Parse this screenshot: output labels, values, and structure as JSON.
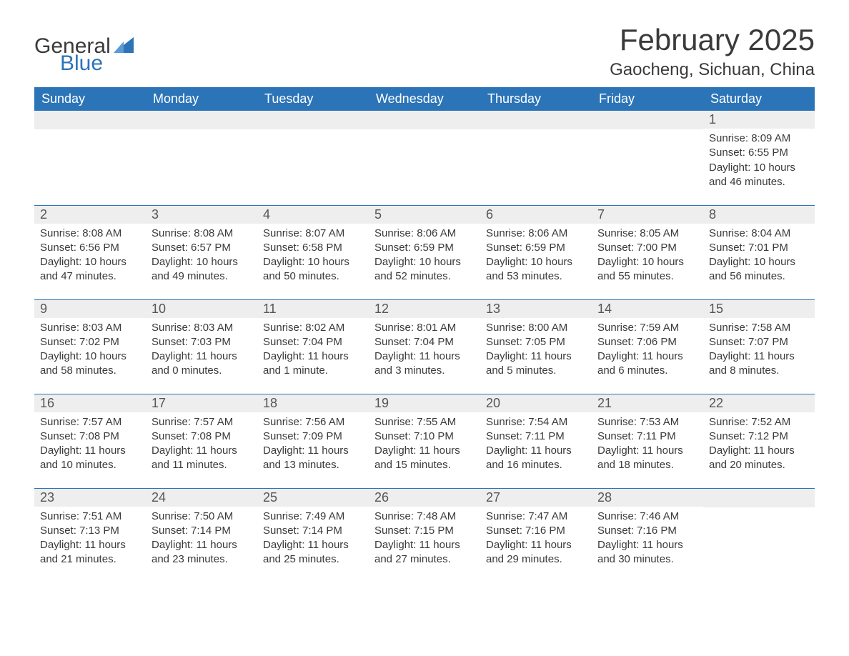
{
  "logo": {
    "text1": "General",
    "text2": "Blue"
  },
  "colors": {
    "brand": "#2b74b8",
    "headerBg": "#2b74b8",
    "headerText": "#ffffff",
    "daynumBg": "#eeeeee",
    "daynumText": "#555555",
    "bodyText": "#3a3a3a",
    "rowBorder": "#2b74b8",
    "pageBg": "#ffffff"
  },
  "title": "February 2025",
  "location": "Gaocheng, Sichuan, China",
  "weekdays": [
    "Sunday",
    "Monday",
    "Tuesday",
    "Wednesday",
    "Thursday",
    "Friday",
    "Saturday"
  ],
  "weeks": [
    [
      {
        "blank": true
      },
      {
        "blank": true
      },
      {
        "blank": true
      },
      {
        "blank": true
      },
      {
        "blank": true
      },
      {
        "blank": true
      },
      {
        "day": "1",
        "sunrise": "Sunrise: 8:09 AM",
        "sunset": "Sunset: 6:55 PM",
        "daylight": "Daylight: 10 hours and 46 minutes."
      }
    ],
    [
      {
        "day": "2",
        "sunrise": "Sunrise: 8:08 AM",
        "sunset": "Sunset: 6:56 PM",
        "daylight": "Daylight: 10 hours and 47 minutes."
      },
      {
        "day": "3",
        "sunrise": "Sunrise: 8:08 AM",
        "sunset": "Sunset: 6:57 PM",
        "daylight": "Daylight: 10 hours and 49 minutes."
      },
      {
        "day": "4",
        "sunrise": "Sunrise: 8:07 AM",
        "sunset": "Sunset: 6:58 PM",
        "daylight": "Daylight: 10 hours and 50 minutes."
      },
      {
        "day": "5",
        "sunrise": "Sunrise: 8:06 AM",
        "sunset": "Sunset: 6:59 PM",
        "daylight": "Daylight: 10 hours and 52 minutes."
      },
      {
        "day": "6",
        "sunrise": "Sunrise: 8:06 AM",
        "sunset": "Sunset: 6:59 PM",
        "daylight": "Daylight: 10 hours and 53 minutes."
      },
      {
        "day": "7",
        "sunrise": "Sunrise: 8:05 AM",
        "sunset": "Sunset: 7:00 PM",
        "daylight": "Daylight: 10 hours and 55 minutes."
      },
      {
        "day": "8",
        "sunrise": "Sunrise: 8:04 AM",
        "sunset": "Sunset: 7:01 PM",
        "daylight": "Daylight: 10 hours and 56 minutes."
      }
    ],
    [
      {
        "day": "9",
        "sunrise": "Sunrise: 8:03 AM",
        "sunset": "Sunset: 7:02 PM",
        "daylight": "Daylight: 10 hours and 58 minutes."
      },
      {
        "day": "10",
        "sunrise": "Sunrise: 8:03 AM",
        "sunset": "Sunset: 7:03 PM",
        "daylight": "Daylight: 11 hours and 0 minutes."
      },
      {
        "day": "11",
        "sunrise": "Sunrise: 8:02 AM",
        "sunset": "Sunset: 7:04 PM",
        "daylight": "Daylight: 11 hours and 1 minute."
      },
      {
        "day": "12",
        "sunrise": "Sunrise: 8:01 AM",
        "sunset": "Sunset: 7:04 PM",
        "daylight": "Daylight: 11 hours and 3 minutes."
      },
      {
        "day": "13",
        "sunrise": "Sunrise: 8:00 AM",
        "sunset": "Sunset: 7:05 PM",
        "daylight": "Daylight: 11 hours and 5 minutes."
      },
      {
        "day": "14",
        "sunrise": "Sunrise: 7:59 AM",
        "sunset": "Sunset: 7:06 PM",
        "daylight": "Daylight: 11 hours and 6 minutes."
      },
      {
        "day": "15",
        "sunrise": "Sunrise: 7:58 AM",
        "sunset": "Sunset: 7:07 PM",
        "daylight": "Daylight: 11 hours and 8 minutes."
      }
    ],
    [
      {
        "day": "16",
        "sunrise": "Sunrise: 7:57 AM",
        "sunset": "Sunset: 7:08 PM",
        "daylight": "Daylight: 11 hours and 10 minutes."
      },
      {
        "day": "17",
        "sunrise": "Sunrise: 7:57 AM",
        "sunset": "Sunset: 7:08 PM",
        "daylight": "Daylight: 11 hours and 11 minutes."
      },
      {
        "day": "18",
        "sunrise": "Sunrise: 7:56 AM",
        "sunset": "Sunset: 7:09 PM",
        "daylight": "Daylight: 11 hours and 13 minutes."
      },
      {
        "day": "19",
        "sunrise": "Sunrise: 7:55 AM",
        "sunset": "Sunset: 7:10 PM",
        "daylight": "Daylight: 11 hours and 15 minutes."
      },
      {
        "day": "20",
        "sunrise": "Sunrise: 7:54 AM",
        "sunset": "Sunset: 7:11 PM",
        "daylight": "Daylight: 11 hours and 16 minutes."
      },
      {
        "day": "21",
        "sunrise": "Sunrise: 7:53 AM",
        "sunset": "Sunset: 7:11 PM",
        "daylight": "Daylight: 11 hours and 18 minutes."
      },
      {
        "day": "22",
        "sunrise": "Sunrise: 7:52 AM",
        "sunset": "Sunset: 7:12 PM",
        "daylight": "Daylight: 11 hours and 20 minutes."
      }
    ],
    [
      {
        "day": "23",
        "sunrise": "Sunrise: 7:51 AM",
        "sunset": "Sunset: 7:13 PM",
        "daylight": "Daylight: 11 hours and 21 minutes."
      },
      {
        "day": "24",
        "sunrise": "Sunrise: 7:50 AM",
        "sunset": "Sunset: 7:14 PM",
        "daylight": "Daylight: 11 hours and 23 minutes."
      },
      {
        "day": "25",
        "sunrise": "Sunrise: 7:49 AM",
        "sunset": "Sunset: 7:14 PM",
        "daylight": "Daylight: 11 hours and 25 minutes."
      },
      {
        "day": "26",
        "sunrise": "Sunrise: 7:48 AM",
        "sunset": "Sunset: 7:15 PM",
        "daylight": "Daylight: 11 hours and 27 minutes."
      },
      {
        "day": "27",
        "sunrise": "Sunrise: 7:47 AM",
        "sunset": "Sunset: 7:16 PM",
        "daylight": "Daylight: 11 hours and 29 minutes."
      },
      {
        "day": "28",
        "sunrise": "Sunrise: 7:46 AM",
        "sunset": "Sunset: 7:16 PM",
        "daylight": "Daylight: 11 hours and 30 minutes."
      },
      {
        "blank": true
      }
    ]
  ]
}
